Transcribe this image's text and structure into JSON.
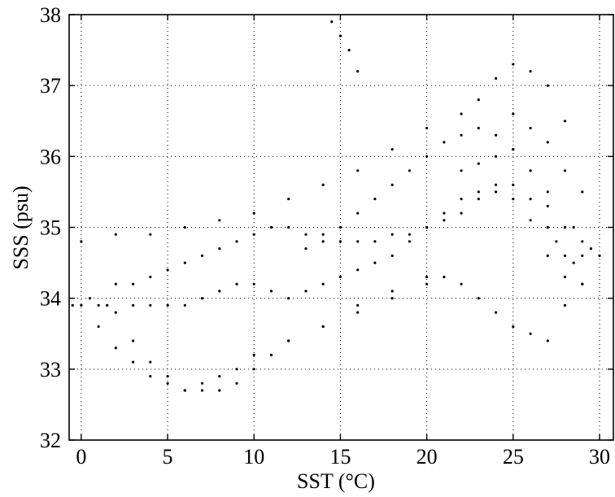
{
  "chart_data": {
    "type": "scatter",
    "title": "",
    "xlabel": "SST (°C)",
    "ylabel": "SSS (psu)",
    "xlim": [
      -0.7,
      30.8
    ],
    "ylim": [
      32,
      38
    ],
    "xticks": [
      "0",
      "5",
      "10",
      "15",
      "20",
      "25",
      "30"
    ],
    "yticks": [
      "32",
      "33",
      "34",
      "35",
      "36",
      "37",
      "38"
    ],
    "grid": true,
    "legend": "none",
    "point_color": "#000000",
    "series": [
      {
        "x": [
          -0.5,
          0.0,
          0.5,
          1.0,
          1.5,
          2.0,
          3.0,
          4.0,
          5.0,
          6.0,
          7.0,
          8.0,
          9.0,
          10.0,
          11.0,
          12.0,
          13.0,
          14.0,
          15.0,
          16.0,
          17.0,
          18.0,
          19.0,
          20.0,
          21.0,
          22.0,
          23.0,
          24.0,
          25.0,
          26.0,
          27.0,
          27.5,
          28.0,
          28.5,
          29.0,
          29.5,
          0.0,
          2.0,
          4.0,
          6.0,
          8.0,
          10.0,
          12.0,
          14.0,
          16.0,
          18.0,
          20.0,
          22.0,
          23.0,
          24.0,
          25.0,
          26.0,
          27.0,
          28.0,
          29.0,
          13.0,
          14.0,
          15.0,
          16.0,
          17.0,
          18.0,
          19.0,
          20.0,
          21.0,
          22.0,
          23.0,
          24.0,
          25.0,
          26.0,
          27.0,
          2.0,
          3.0,
          4.0,
          5.0,
          6.0,
          7.0,
          8.0,
          9.0,
          10.0,
          11.0,
          12.0,
          13.0,
          14.0,
          15.0,
          16.0,
          17.0,
          18.0,
          19.0,
          20.0,
          21.0,
          22.0,
          23.0,
          24.0,
          25.0,
          26.0,
          27.0,
          28.0,
          3.0,
          4.0,
          5.0,
          6.0,
          7.0,
          8.0,
          9.0,
          10.0,
          12.0,
          14.0,
          16.0,
          18.0,
          20.0,
          21.0,
          22.0,
          23.0,
          24.0,
          25.0,
          26.0,
          27.0,
          28.0,
          29.0,
          1.0,
          2.0,
          3.0,
          4.0,
          5.0,
          6.0,
          7.0,
          8.0,
          9.0,
          10.0,
          11.0,
          12.0,
          14.0,
          16.0,
          18.0,
          20.0,
          22.0,
          23.0,
          24.0,
          25.0,
          26.0,
          27.0,
          28.0,
          29.0,
          30.0,
          14.5,
          15.0,
          15.5,
          16.0,
          25.0,
          26.0,
          27.0,
          28.0,
          28.5,
          29.0
        ],
        "y": [
          33.9,
          33.9,
          34.0,
          33.9,
          33.9,
          33.8,
          33.9,
          33.9,
          33.9,
          33.9,
          34.0,
          34.1,
          34.2,
          34.2,
          34.1,
          34.0,
          34.1,
          34.2,
          34.3,
          34.4,
          34.5,
          34.6,
          34.8,
          35.0,
          35.2,
          35.4,
          35.5,
          35.6,
          35.6,
          35.4,
          35.0,
          34.8,
          34.6,
          34.5,
          34.6,
          34.7,
          34.8,
          34.9,
          34.9,
          35.0,
          35.1,
          35.2,
          35.4,
          35.6,
          35.8,
          36.1,
          36.4,
          36.6,
          36.8,
          37.1,
          37.3,
          37.2,
          37.0,
          36.5,
          35.5,
          34.7,
          34.9,
          35.0,
          35.2,
          35.4,
          35.6,
          35.8,
          36.0,
          36.2,
          36.3,
          36.4,
          36.3,
          36.1,
          35.8,
          35.3,
          34.2,
          34.2,
          34.3,
          34.4,
          34.5,
          34.6,
          34.7,
          34.8,
          34.9,
          35.0,
          35.0,
          34.9,
          34.8,
          34.8,
          34.8,
          34.8,
          34.9,
          34.9,
          35.0,
          35.1,
          35.2,
          35.4,
          35.5,
          35.4,
          35.1,
          34.6,
          34.3,
          33.4,
          33.1,
          32.9,
          32.7,
          32.8,
          32.9,
          33.0,
          33.2,
          33.4,
          33.6,
          33.8,
          34.0,
          34.2,
          34.3,
          34.2,
          34.0,
          33.8,
          33.6,
          33.5,
          33.4,
          33.9,
          34.2,
          33.6,
          33.3,
          33.1,
          32.9,
          32.8,
          32.7,
          32.7,
          32.7,
          32.8,
          33.0,
          33.2,
          33.4,
          33.6,
          33.9,
          34.1,
          34.3,
          35.8,
          35.9,
          36.0,
          36.1,
          35.8,
          35.5,
          35.0,
          34.8,
          34.6,
          37.9,
          37.7,
          37.5,
          37.2,
          36.6,
          36.4,
          36.2,
          35.8,
          35.0,
          34.2
        ]
      }
    ]
  }
}
